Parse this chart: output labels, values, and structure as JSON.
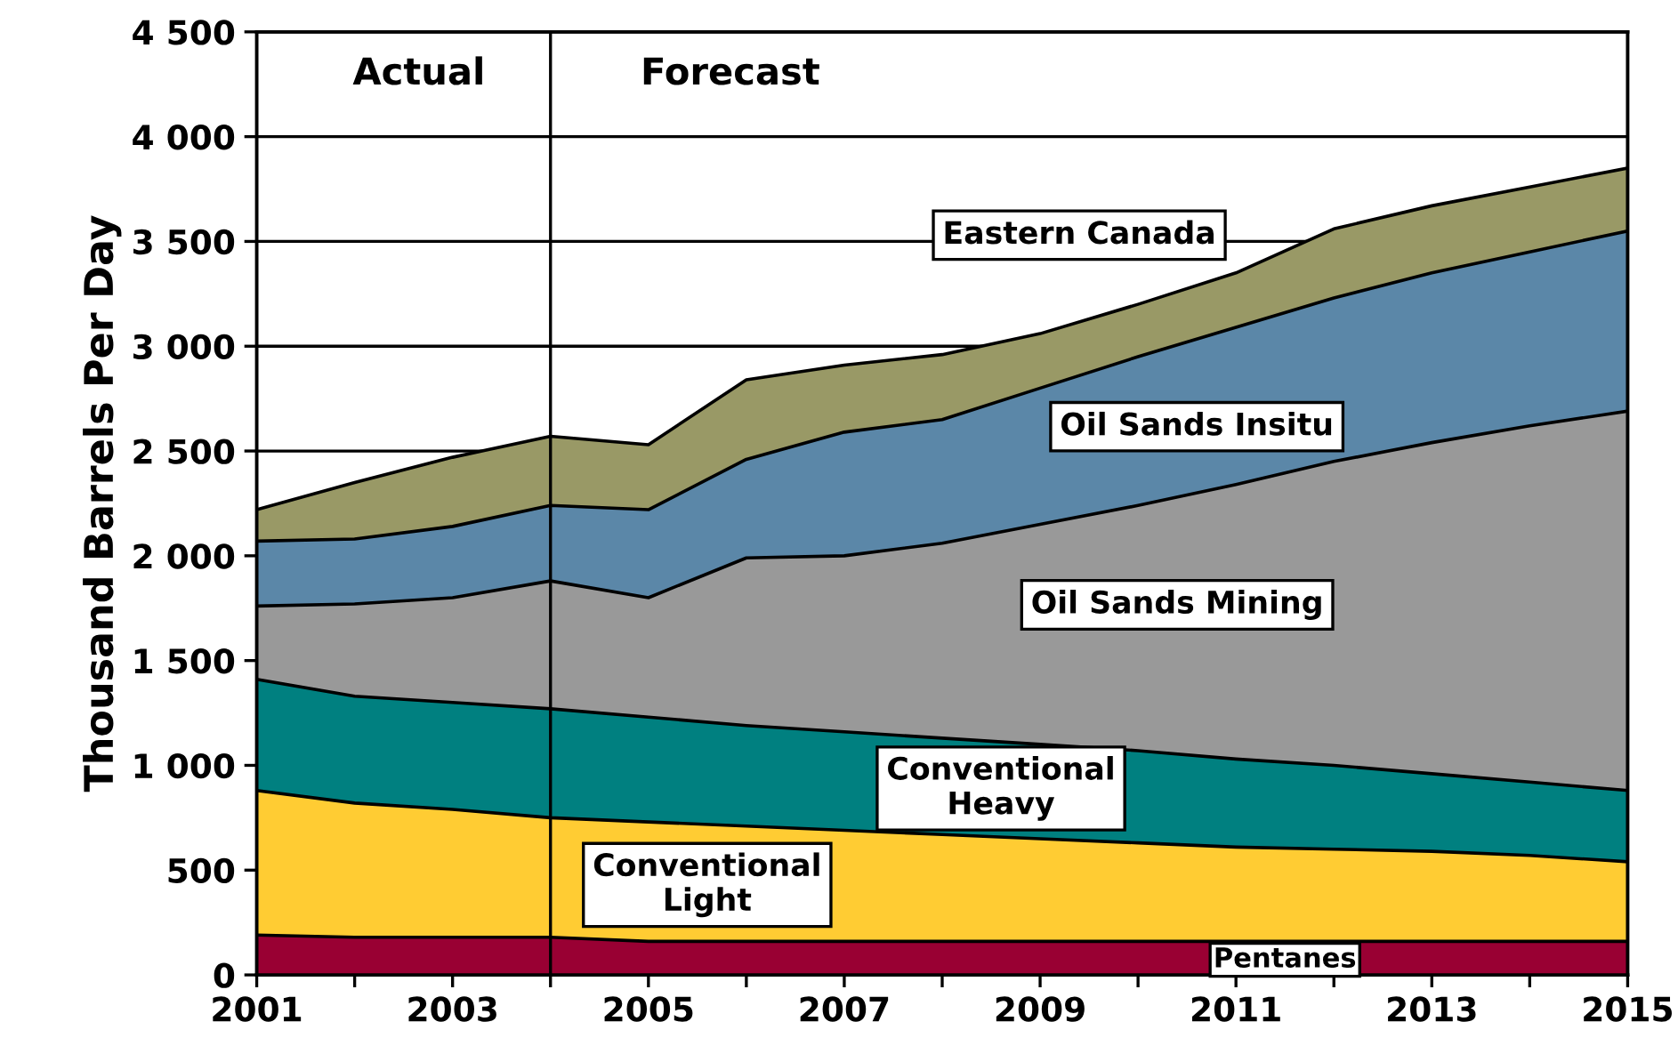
{
  "chart_data": {
    "type": "area",
    "stacked": true,
    "ylabel": "Thousand Barrels Per Day",
    "x": [
      2001,
      2002,
      2003,
      2004,
      2005,
      2006,
      2007,
      2008,
      2009,
      2010,
      2011,
      2012,
      2013,
      2014,
      2015
    ],
    "series": [
      {
        "name": "Pentanes",
        "color": "#990033",
        "values": [
          190,
          180,
          180,
          180,
          160,
          160,
          160,
          160,
          160,
          160,
          160,
          160,
          160,
          160,
          160
        ]
      },
      {
        "name": "Conventional Light",
        "color": "#ffcc33",
        "values": [
          690,
          640,
          610,
          570,
          570,
          550,
          530,
          510,
          490,
          470,
          450,
          440,
          430,
          410,
          380
        ]
      },
      {
        "name": "Conventional Heavy",
        "color": "#008080",
        "values": [
          530,
          510,
          510,
          520,
          500,
          480,
          470,
          460,
          450,
          440,
          420,
          400,
          370,
          350,
          340
        ]
      },
      {
        "name": "Oil Sands Mining",
        "color": "#999999",
        "values": [
          350,
          440,
          500,
          610,
          570,
          800,
          840,
          930,
          1050,
          1170,
          1310,
          1450,
          1580,
          1700,
          1810
        ]
      },
      {
        "name": "Oil Sands Insitu",
        "color": "#5b87a8",
        "values": [
          310,
          310,
          340,
          360,
          420,
          470,
          590,
          590,
          650,
          710,
          750,
          780,
          810,
          830,
          860
        ]
      },
      {
        "name": "Eastern Canada",
        "color": "#999966",
        "values": [
          150,
          270,
          330,
          330,
          310,
          380,
          320,
          310,
          260,
          250,
          260,
          330,
          320,
          310,
          300
        ]
      }
    ],
    "xlim": [
      2001,
      2015
    ],
    "xticks": [
      2001,
      {
        "value": 2002,
        "label": null
      },
      2003,
      {
        "value": 2004,
        "label": null
      },
      2005,
      {
        "value": 2006,
        "label": null
      },
      2007,
      {
        "value": 2008,
        "label": null
      },
      2009,
      {
        "value": 2010,
        "label": null
      },
      2011,
      {
        "value": 2012,
        "label": null
      },
      2013,
      {
        "value": 2014,
        "label": null
      },
      2015
    ],
    "ylim": [
      0,
      4500
    ],
    "yticks": [
      0,
      500,
      {
        "value": 1000,
        "label": "1 000"
      },
      {
        "value": 1500,
        "label": "1 500"
      },
      {
        "value": 2000,
        "label": "2 000"
      },
      {
        "value": 2500,
        "label": "2 500"
      },
      {
        "value": 3000,
        "label": "3 000"
      },
      {
        "value": 3500,
        "label": "3 500"
      },
      {
        "value": 4000,
        "label": "4 000"
      },
      {
        "value": 4500,
        "label": "4 500"
      }
    ],
    "grid": "y",
    "ref_lines": [
      {
        "axis": "x",
        "value": 2004,
        "color": "#000000"
      }
    ],
    "annotations": [
      "Actual",
      "Forecast"
    ]
  }
}
